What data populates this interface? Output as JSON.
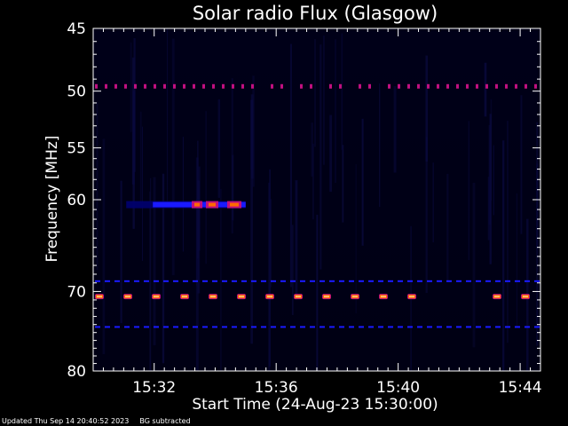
{
  "chart_data": {
    "type": "heatmap",
    "title": "Solar radio Flux (Glasgow)",
    "xlabel": "Start Time (24-Aug-23 15:30:00)",
    "ylabel": "Frequency [MHz]",
    "x_range_minutes": [
      "15:30:00",
      "15:44:40"
    ],
    "x_ticks": [
      "15:32",
      "15:36",
      "15:40",
      "15:44"
    ],
    "y_ticks": [
      "45",
      "50",
      "55",
      "60",
      "70",
      "80"
    ],
    "ylim": [
      45,
      80
    ],
    "colormap": [
      "#000010",
      "#000070",
      "#1a1aff",
      "#c01080",
      "#ff6a00",
      "#ffe0a0"
    ],
    "features": [
      {
        "name": "band",
        "freq_mhz": 49.6,
        "time_start": "15:30:00",
        "time_end": "15:44:40",
        "intensity": 0.35,
        "dashed": true
      },
      {
        "name": "band",
        "freq_mhz": 68.8,
        "time_start": "15:30:00",
        "time_end": "15:44:40",
        "intensity": 0.25,
        "dashed": true
      },
      {
        "name": "band",
        "freq_mhz": 70.6,
        "time_start": "15:30:00",
        "time_end": "15:44:40",
        "intensity": 0.95,
        "dashed": true
      },
      {
        "name": "band",
        "freq_mhz": 74.3,
        "time_start": "15:30:00",
        "time_end": "15:44:40",
        "intensity": 0.25,
        "dashed": true
      },
      {
        "name": "burst",
        "freq_mhz": 60.5,
        "time_start": "15:31:05",
        "time_end": "15:35:00",
        "intensity": 0.85,
        "dashed": false
      }
    ]
  },
  "footer": {
    "updated": "Updated Thu Sep 14 20:40:52 2023",
    "note": "BG subtracted"
  }
}
